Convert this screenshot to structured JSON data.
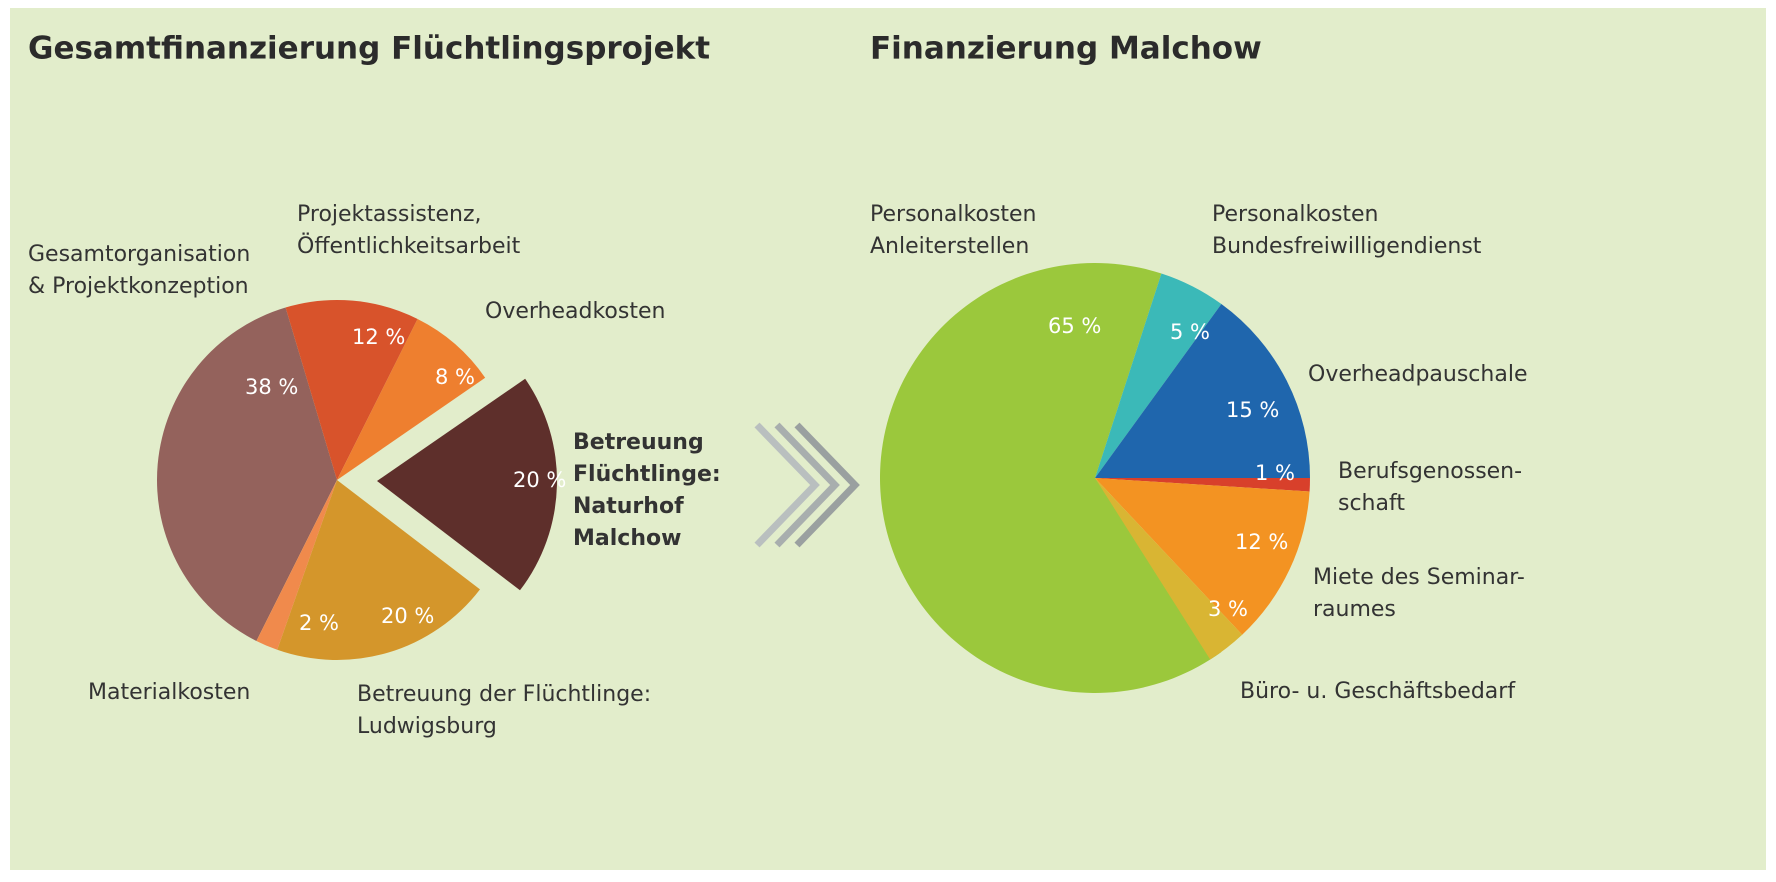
{
  "chart_data": [
    {
      "type": "pie",
      "title": "Gesamtfinanzierung Flüchtlingsprojekt",
      "categories": [
        [
          "Gesamtorganisation",
          "& Projektkonzeption"
        ],
        [
          "Projektassistenz,",
          "Öffentlichkeitsarbeit"
        ],
        [
          "Overheadkosten"
        ],
        [
          "Betreuung",
          "Flüchtlinge:",
          "Naturhof",
          "Malchow"
        ],
        [
          "Betreuung der Flüchtlinge:",
          "Ludwigsburg"
        ],
        [
          "Materialkosten"
        ]
      ],
      "values": [
        38,
        12,
        8,
        20,
        20,
        2
      ],
      "value_labels": [
        "38 %",
        "12 %",
        "8 %",
        "20 %",
        "20 %",
        "2 %"
      ],
      "colors": [
        "#94625c",
        "#d8532b",
        "#ee7f2f",
        "#5e2f2b",
        "#d4962b",
        "#f08a4c"
      ]
    },
    {
      "type": "pie",
      "title": "Finanzierung Malchow",
      "categories": [
        [
          "Personalkosten",
          "Anleiterstellen"
        ],
        [
          "Personalkosten",
          "Bundesfreiwilligendienst"
        ],
        [
          "Overheadpauschale"
        ],
        [
          "Berufsgenossen-",
          "schaft"
        ],
        [
          "Miete des Seminar-",
          "raumes"
        ],
        [
          "Büro- u. Geschäftsbedarf"
        ]
      ],
      "values": [
        65,
        5,
        15,
        1,
        12,
        3
      ],
      "value_labels": [
        "65 %",
        "5 %",
        "15 %",
        "1 %",
        "12 %",
        "3 %"
      ],
      "colors": [
        "#9bc83c",
        "#3bb9b8",
        "#1f66ad",
        "#d8402b",
        "#f39322",
        "#d9b533"
      ]
    }
  ]
}
